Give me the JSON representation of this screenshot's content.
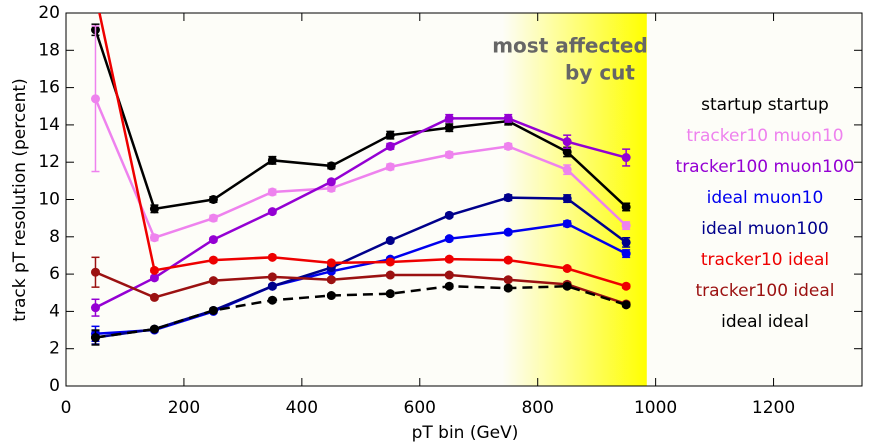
{
  "chart_data": {
    "type": "line",
    "xlabel": "pT bin (GeV)",
    "ylabel": "track pT resolution (percent)",
    "annotation": [
      "most affected",
      "by cut"
    ],
    "highlight": [
      740,
      985
    ],
    "x": [
      50,
      150,
      250,
      350,
      450,
      550,
      650,
      750,
      850,
      950
    ],
    "xlim": [
      0,
      1350
    ],
    "xticks": [
      0,
      200,
      400,
      600,
      800,
      1000,
      1200
    ],
    "ylim": [
      0,
      20
    ],
    "yticks": [
      0,
      2,
      4,
      6,
      8,
      10,
      12,
      14,
      16,
      18,
      20
    ],
    "series": [
      {
        "name": "startup startup",
        "color": "#000000",
        "values": [
          19.1,
          9.5,
          10.0,
          12.1,
          11.8,
          13.45,
          13.85,
          14.2,
          12.55,
          9.6
        ],
        "errors": [
          0.3,
          0.2,
          0.15,
          0.2,
          0.15,
          0.2,
          0.2,
          0.2,
          0.25,
          0.2
        ]
      },
      {
        "name": "tracker10 muon10",
        "color": "#ee82ee",
        "values": [
          15.4,
          7.95,
          9.0,
          10.4,
          10.6,
          11.75,
          12.4,
          12.85,
          11.6,
          8.6
        ],
        "errors": [
          3.9,
          0.15,
          0.15,
          0.15,
          0.15,
          0.15,
          0.15,
          0.15,
          0.25,
          0.2
        ]
      },
      {
        "name": "tracker100 muon100",
        "color": "#9400d3",
        "values": [
          4.2,
          5.8,
          7.85,
          9.35,
          10.95,
          12.85,
          14.35,
          14.35,
          13.1,
          12.25
        ],
        "errors": [
          0.45,
          0.1,
          0.1,
          0.1,
          0.1,
          0.15,
          0.2,
          0.2,
          0.35,
          0.45
        ]
      },
      {
        "name": "ideal muon10",
        "color": "#0000ee",
        "values": [
          2.8,
          3.0,
          4.0,
          5.35,
          6.15,
          6.8,
          7.9,
          8.25,
          8.7,
          7.1
        ],
        "errors": [
          0.4,
          0.1,
          0.1,
          0.1,
          0.1,
          0.1,
          0.1,
          0.1,
          0.15,
          0.2
        ]
      },
      {
        "name": "ideal muon100",
        "color": "#00008b",
        "values": [
          2.6,
          3.05,
          4.05,
          5.35,
          6.35,
          7.8,
          9.15,
          10.1,
          10.05,
          7.7
        ],
        "errors": [
          0.35,
          0.1,
          0.1,
          0.1,
          0.1,
          0.1,
          0.1,
          0.15,
          0.2,
          0.25
        ]
      },
      {
        "name": "tracker10 ideal",
        "color": "#ee0000",
        "values": [
          21,
          6.2,
          6.75,
          6.9,
          6.6,
          6.65,
          6.8,
          6.75,
          6.3,
          5.35
        ],
        "errors": [
          0.3,
          0.1,
          0.1,
          0.1,
          0.1,
          0.1,
          0.1,
          0.1,
          0.1,
          0.1
        ]
      },
      {
        "name": "tracker100 ideal",
        "color": "#9b1111",
        "values": [
          6.1,
          4.75,
          5.65,
          5.85,
          5.7,
          5.95,
          5.95,
          5.7,
          5.45,
          4.4
        ],
        "errors": [
          0.8,
          0.1,
          0.1,
          0.1,
          0.1,
          0.1,
          0.1,
          0.1,
          0.1,
          0.1
        ]
      },
      {
        "name": "ideal ideal",
        "color": "#000000",
        "dash": true,
        "values": [
          2.6,
          3.05,
          4.05,
          4.6,
          4.85,
          4.95,
          5.35,
          5.25,
          5.35,
          4.35
        ],
        "errors": [
          0.4,
          0.1,
          0.1,
          0.1,
          0.1,
          0.1,
          0.1,
          0.1,
          0.1,
          0.1
        ]
      }
    ]
  }
}
